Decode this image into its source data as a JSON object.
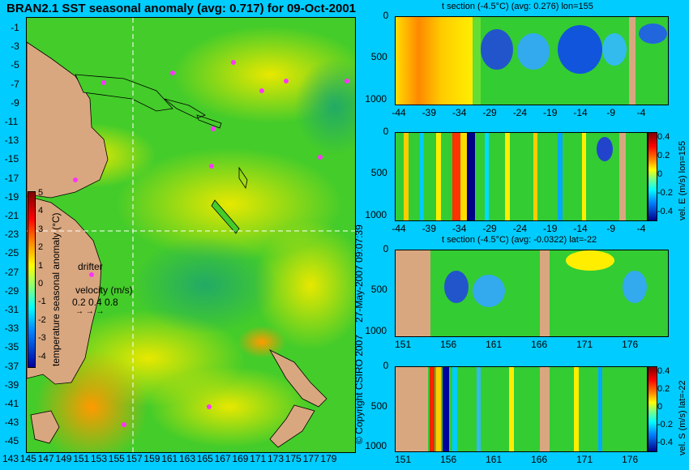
{
  "map": {
    "title": "BRAN2.1 SST seasonal anomaly (avg: 0.717) for 09-Oct-2001",
    "y_ticks": [
      "-1",
      "-3",
      "-5",
      "-7",
      "-9",
      "-11",
      "-13",
      "-15",
      "-17",
      "-19",
      "-21",
      "-23",
      "-25",
      "-27",
      "-29",
      "-31",
      "-33",
      "-35",
      "-37",
      "-39",
      "-41",
      "-43",
      "-45"
    ],
    "x_ticks": [
      "143",
      "145",
      "147",
      "149",
      "151",
      "153",
      "155",
      "157",
      "159",
      "161",
      "163",
      "165",
      "167",
      "169",
      "171",
      "173",
      "175",
      "177",
      "179"
    ],
    "colorbar": {
      "label": "temperature seasonal anomaly (°C)",
      "ticks": [
        "5",
        "4",
        "3",
        "2",
        "1",
        "0",
        "-1",
        "-2",
        "-3",
        "-4"
      ]
    },
    "drifter_label": "drifter",
    "velocity_label": "velocity (m/s)",
    "velocity_scale": "0.2 0.4 0.8",
    "copyright": "© Copyright CSIRO 2007",
    "timestamp": "27-May-2007 09:07:39"
  },
  "panels": [
    {
      "id": "t-lon",
      "title": "t section (-4.5°C) (avg: 0.276) lon=155",
      "x_ticks": [
        "-44",
        "-39",
        "-34",
        "-29",
        "-24",
        "-19",
        "-14",
        "-9",
        "-4"
      ],
      "y_ticks": [
        "0",
        "500",
        "1000"
      ]
    },
    {
      "id": "vel-e",
      "title": "",
      "x_ticks": [
        "-44",
        "-39",
        "-34",
        "-29",
        "-24",
        "-19",
        "-14",
        "-9",
        "-4"
      ],
      "y_ticks": [
        "0",
        "500",
        "1000"
      ],
      "colorbar_label": "vel. E (m/s) lon=155",
      "colorbar_ticks": [
        "0.4",
        "0.2",
        "0",
        "-0.2",
        "-0.4"
      ]
    },
    {
      "id": "t-lat",
      "title": "t section (-4.5°C) (avg: -0.0322) lat=-22",
      "x_ticks": [
        "151",
        "156",
        "161",
        "166",
        "171",
        "176"
      ],
      "y_ticks": [
        "0",
        "500",
        "1000"
      ]
    },
    {
      "id": "vel-s",
      "title": "",
      "x_ticks": [
        "151",
        "156",
        "161",
        "166",
        "171",
        "176"
      ],
      "y_ticks": [
        "0",
        "500",
        "1000"
      ],
      "colorbar_label": "vel. S (m/s) lat=-22",
      "colorbar_ticks": [
        "0.4",
        "0.2",
        "0",
        "-0.2",
        "-0.4"
      ]
    }
  ],
  "chart_data": [
    {
      "type": "heatmap",
      "title": "BRAN2.1 SST seasonal anomaly (avg: 0.717) for 09-Oct-2001",
      "x": [
        143,
        145,
        147,
        149,
        151,
        153,
        155,
        157,
        159,
        161,
        163,
        165,
        167,
        169,
        171,
        173,
        175,
        177,
        179
      ],
      "y": [
        -1,
        -3,
        -5,
        -7,
        -9,
        -11,
        -13,
        -15,
        -17,
        -19,
        -21,
        -23,
        -25,
        -27,
        -29,
        -31,
        -33,
        -35,
        -37,
        -39,
        -41,
        -43,
        -45
      ],
      "xlim": [
        143,
        180
      ],
      "ylim": [
        -45,
        0
      ],
      "colorbar_range": [
        -4,
        5
      ],
      "colorbar_label": "temperature seasonal anomaly (°C)",
      "section_lines": {
        "lon": 155,
        "lat": -22
      }
    },
    {
      "type": "heatmap",
      "title": "t section (-4.5°C) (avg: 0.276) lon=155",
      "x": [
        -44,
        -39,
        -34,
        -29,
        -24,
        -19,
        -14,
        -9,
        -4
      ],
      "y": [
        0,
        500,
        1000
      ],
      "xlim": [
        -45,
        0
      ],
      "ylim": [
        1050,
        0
      ]
    },
    {
      "type": "heatmap",
      "colorbar_label": "vel. E (m/s) lon=155",
      "colorbar_range": [
        -0.4,
        0.4
      ],
      "x": [
        -44,
        -39,
        -34,
        -29,
        -24,
        -19,
        -14,
        -9,
        -4
      ],
      "y": [
        0,
        500,
        1000
      ],
      "xlim": [
        -45,
        0
      ],
      "ylim": [
        1050,
        0
      ]
    },
    {
      "type": "heatmap",
      "title": "t section (-4.5°C) (avg: -0.0322) lat=-22",
      "x": [
        151,
        156,
        161,
        166,
        171,
        176
      ],
      "y": [
        0,
        500,
        1000
      ],
      "xlim": [
        150,
        180
      ],
      "ylim": [
        1050,
        0
      ]
    },
    {
      "type": "heatmap",
      "colorbar_label": "vel. S (m/s) lat=-22",
      "colorbar_range": [
        -0.4,
        0.4
      ],
      "x": [
        151,
        156,
        161,
        166,
        171,
        176
      ],
      "y": [
        0,
        500,
        1000
      ],
      "xlim": [
        150,
        180
      ],
      "ylim": [
        1050,
        0
      ]
    }
  ]
}
